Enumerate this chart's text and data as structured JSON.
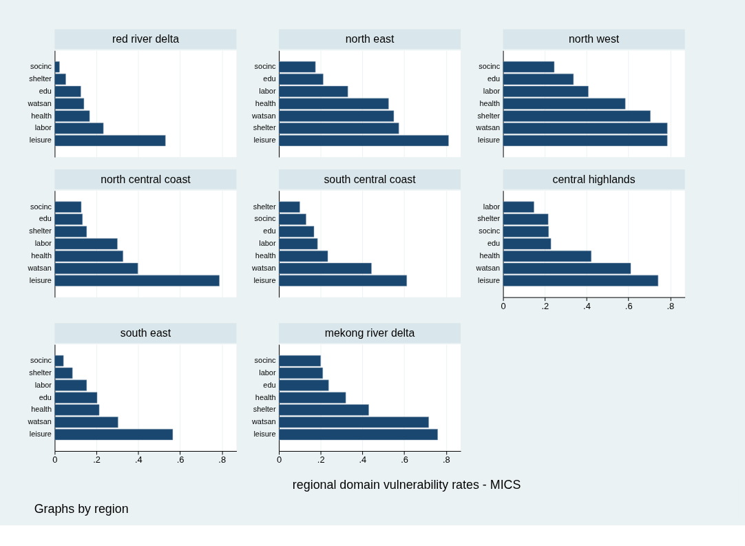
{
  "chart_data": [
    {
      "type": "bar",
      "orientation": "horizontal",
      "title": "red river delta",
      "categories": [
        "socinc",
        "shelter",
        "edu",
        "watsan",
        "health",
        "labor",
        "leisure"
      ],
      "values": [
        0.023,
        0.053,
        0.125,
        0.14,
        0.167,
        0.233,
        0.53
      ],
      "color": "#1a476f",
      "xlim": [
        0,
        0.87
      ],
      "xticks": [
        0.2,
        0.4,
        0.6,
        0.8
      ],
      "grid": "x",
      "tick_labels": "y"
    },
    {
      "type": "bar",
      "orientation": "horizontal",
      "title": "north east",
      "categories": [
        "socinc",
        "edu",
        "labor",
        "health",
        "watsan",
        "shelter",
        "leisure"
      ],
      "values": [
        0.175,
        0.212,
        0.33,
        0.525,
        0.55,
        0.574,
        0.812
      ],
      "color": "#1a476f",
      "xlim": [
        0,
        0.87
      ],
      "xticks": [
        0.2,
        0.4,
        0.6,
        0.8
      ],
      "grid": "x",
      "tick_labels": "y"
    },
    {
      "type": "bar",
      "orientation": "horizontal",
      "title": "north west",
      "categories": [
        "socinc",
        "edu",
        "labor",
        "health",
        "shelter",
        "watsan",
        "leisure"
      ],
      "values": [
        0.245,
        0.337,
        0.408,
        0.585,
        0.705,
        0.786,
        0.786
      ],
      "color": "#1a476f",
      "xlim": [
        0,
        0.87
      ],
      "xticks": [
        0.2,
        0.4,
        0.6,
        0.8
      ],
      "grid": "x",
      "tick_labels": "y"
    },
    {
      "type": "bar",
      "orientation": "horizontal",
      "title": "north central coast",
      "categories": [
        "socinc",
        "edu",
        "shelter",
        "labor",
        "health",
        "watsan",
        "leisure"
      ],
      "values": [
        0.127,
        0.133,
        0.153,
        0.3,
        0.327,
        0.398,
        0.788
      ],
      "color": "#1a476f",
      "xlim": [
        0,
        0.87
      ],
      "xticks": [
        0.2,
        0.4,
        0.6,
        0.8
      ],
      "grid": "x",
      "tick_labels": "y"
    },
    {
      "type": "bar",
      "orientation": "horizontal",
      "title": "south central coast",
      "categories": [
        "shelter",
        "socinc",
        "edu",
        "labor",
        "health",
        "watsan",
        "leisure"
      ],
      "values": [
        0.1,
        0.13,
        0.168,
        0.185,
        0.234,
        0.443,
        0.612
      ],
      "color": "#1a476f",
      "xlim": [
        0,
        0.87
      ],
      "xticks": [
        0.2,
        0.4,
        0.6,
        0.8
      ],
      "grid": "x",
      "tick_labels": "y"
    },
    {
      "type": "bar",
      "orientation": "horizontal",
      "title": "central highlands",
      "categories": [
        "labor",
        "shelter",
        "socinc",
        "edu",
        "health",
        "watsan",
        "leisure"
      ],
      "values": [
        0.148,
        0.216,
        0.218,
        0.229,
        0.422,
        0.611,
        0.742
      ],
      "color": "#1a476f",
      "xlim": [
        0,
        0.87
      ],
      "xticks": [
        0,
        {
          "value": 0.2,
          "label": ".2"
        },
        {
          "value": 0.4,
          "label": ".4"
        },
        {
          "value": 0.6,
          "label": ".6"
        },
        {
          "value": 0.8,
          "label": ".8"
        }
      ],
      "grid": "x"
    },
    {
      "type": "bar",
      "orientation": "horizontal",
      "title": "south east",
      "categories": [
        "socinc",
        "shelter",
        "labor",
        "edu",
        "health",
        "watsan",
        "leisure"
      ],
      "values": [
        0.042,
        0.085,
        0.153,
        0.203,
        0.213,
        0.303,
        0.565
      ],
      "color": "#1a476f",
      "xlim": [
        0,
        0.87
      ],
      "xticks": [
        0,
        {
          "value": 0.2,
          "label": ".2"
        },
        {
          "value": 0.4,
          "label": ".4"
        },
        {
          "value": 0.6,
          "label": ".6"
        },
        {
          "value": 0.8,
          "label": ".8"
        }
      ],
      "grid": "x"
    },
    {
      "type": "bar",
      "orientation": "horizontal",
      "title": "mekong river delta",
      "categories": [
        "socinc",
        "labor",
        "edu",
        "health",
        "shelter",
        "watsan",
        "leisure"
      ],
      "values": [
        0.2,
        0.21,
        0.238,
        0.32,
        0.43,
        0.717,
        0.76
      ],
      "color": "#1a476f",
      "xlim": [
        0,
        0.87
      ],
      "xticks": [
        0,
        {
          "value": 0.2,
          "label": ".2"
        },
        {
          "value": 0.4,
          "label": ".4"
        },
        {
          "value": 0.6,
          "label": ".6"
        },
        {
          "value": 0.8,
          "label": ".8"
        }
      ],
      "grid": "x"
    },
    {
      "type": "other",
      "annotations": [
        "regional  domain vulnerability rates - MICS",
        "Graphs by region"
      ]
    }
  ]
}
